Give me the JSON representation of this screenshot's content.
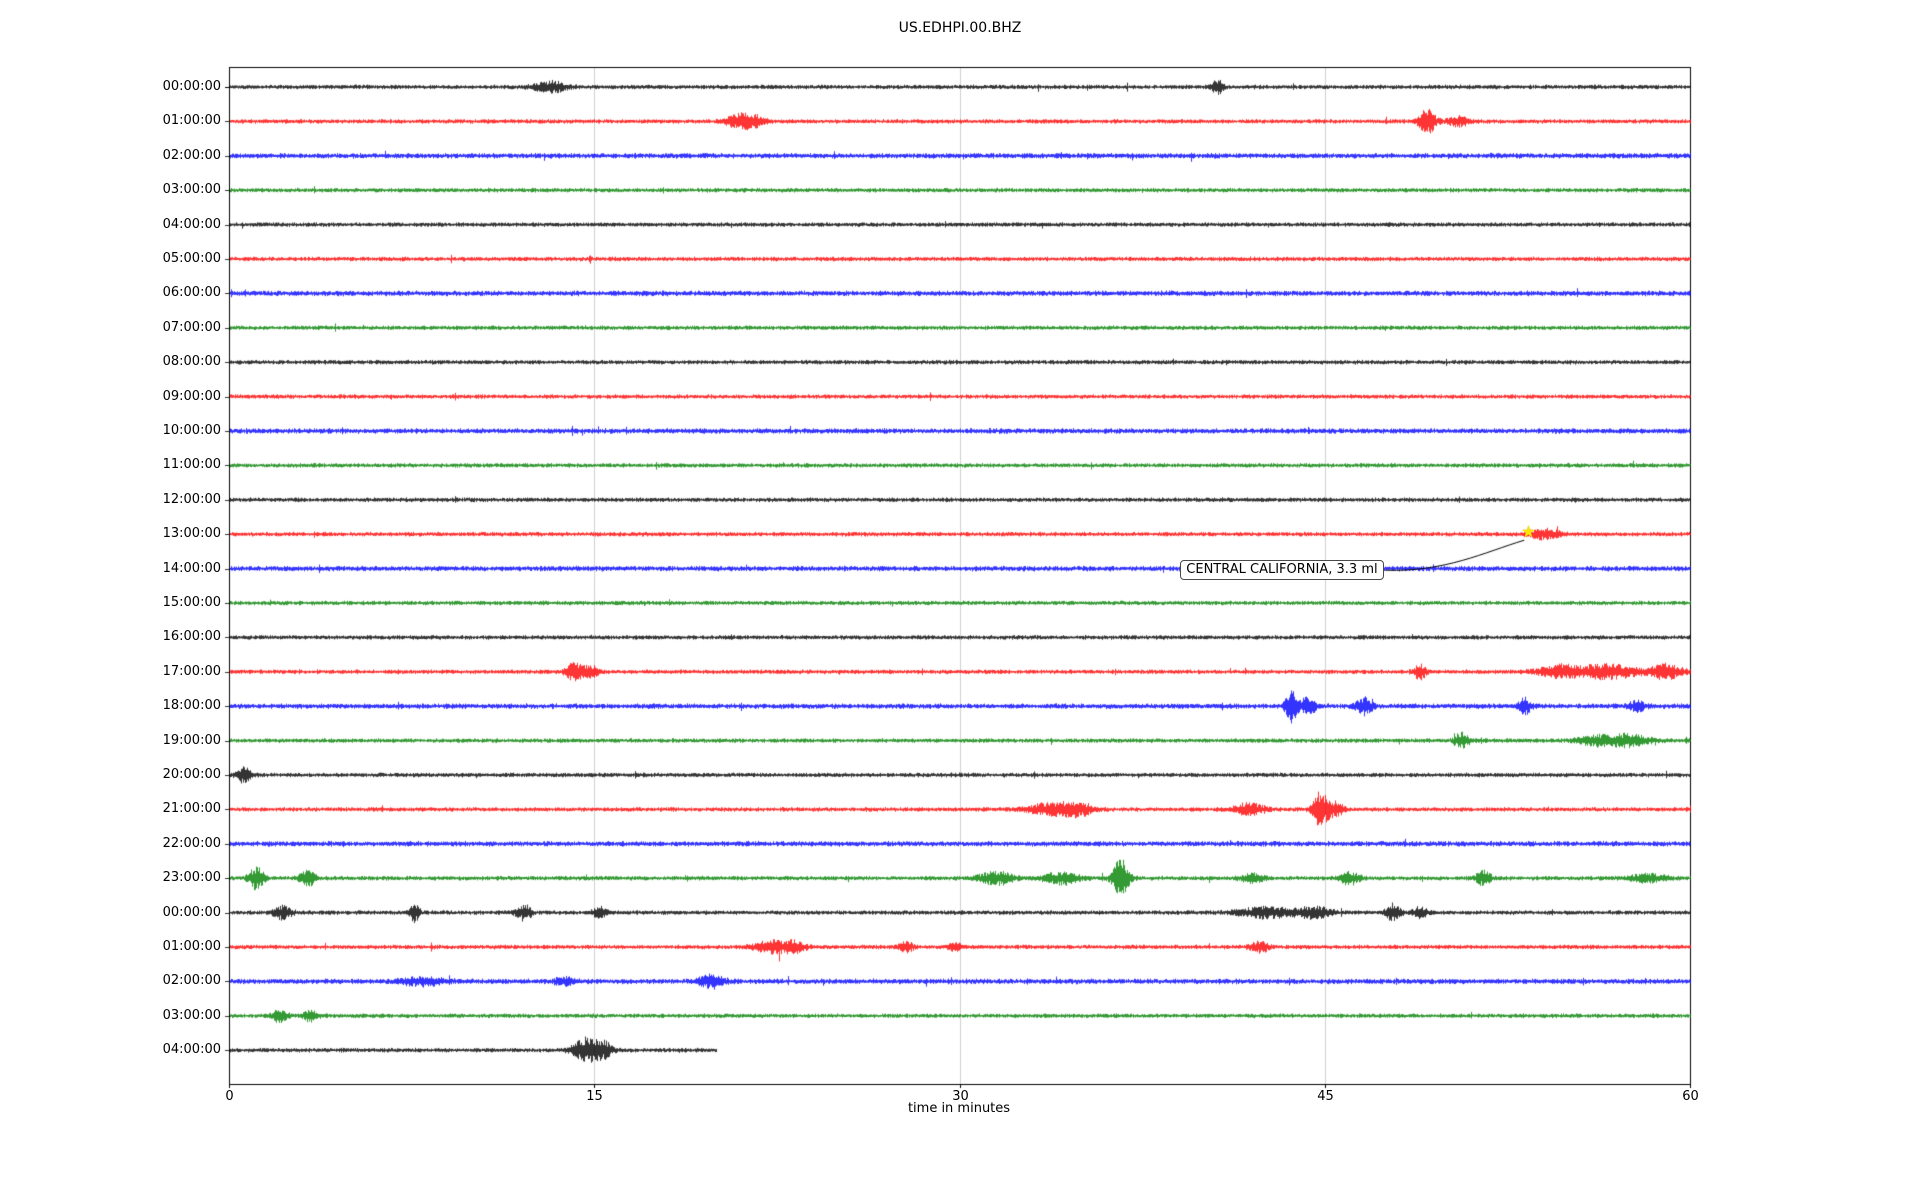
{
  "chart_data": {
    "type": "line",
    "subtype": "seismogram-dayplot",
    "title": "US.EDHPI.00.BHZ",
    "xlabel": "time in minutes",
    "x_range": [
      0,
      60
    ],
    "x_ticks": [
      0,
      15,
      30,
      45,
      60
    ],
    "grid_minutes": [
      15,
      30,
      45
    ],
    "grid_color": "#cfcfcf",
    "trace_colors_cycle": [
      "#000000",
      "#ff0000",
      "#0000ff",
      "#008000"
    ],
    "rows": [
      {
        "label": "00:00:00",
        "color": "#000000",
        "end_minute": 60,
        "events": [
          {
            "minute": 13.2,
            "width": 0.7,
            "amp": 5
          },
          {
            "minute": 40.6,
            "width": 0.25,
            "amp": 7
          }
        ]
      },
      {
        "label": "01:00:00",
        "color": "#ff0000",
        "end_minute": 60,
        "events": [
          {
            "minute": 20.9,
            "width": 0.5,
            "amp": 7
          },
          {
            "minute": 21.6,
            "width": 0.4,
            "amp": 5
          },
          {
            "minute": 49.2,
            "width": 0.35,
            "amp": 13
          },
          {
            "minute": 50.5,
            "width": 0.4,
            "amp": 5
          }
        ]
      },
      {
        "label": "02:00:00",
        "color": "#0000ff",
        "end_minute": 60,
        "base": 2.4,
        "events": []
      },
      {
        "label": "03:00:00",
        "color": "#008000",
        "end_minute": 60,
        "events": []
      },
      {
        "label": "04:00:00",
        "color": "#000000",
        "end_minute": 60,
        "events": []
      },
      {
        "label": "05:00:00",
        "color": "#ff0000",
        "end_minute": 60,
        "events": []
      },
      {
        "label": "06:00:00",
        "color": "#0000ff",
        "end_minute": 60,
        "base": 2.4,
        "events": []
      },
      {
        "label": "07:00:00",
        "color": "#008000",
        "end_minute": 60,
        "events": []
      },
      {
        "label": "08:00:00",
        "color": "#000000",
        "end_minute": 60,
        "events": []
      },
      {
        "label": "09:00:00",
        "color": "#ff0000",
        "end_minute": 60,
        "events": []
      },
      {
        "label": "10:00:00",
        "color": "#0000ff",
        "end_minute": 60,
        "base": 2.4,
        "events": []
      },
      {
        "label": "11:00:00",
        "color": "#008000",
        "end_minute": 60,
        "events": []
      },
      {
        "label": "12:00:00",
        "color": "#000000",
        "end_minute": 60,
        "events": []
      },
      {
        "label": "13:00:00",
        "color": "#ff0000",
        "end_minute": 60,
        "events": [
          {
            "minute": 53.8,
            "width": 0.5,
            "amp": 4
          },
          {
            "minute": 54.4,
            "width": 0.4,
            "amp": 3
          }
        ]
      },
      {
        "label": "14:00:00",
        "color": "#0000ff",
        "end_minute": 60,
        "base": 2.4,
        "events": []
      },
      {
        "label": "15:00:00",
        "color": "#008000",
        "end_minute": 60,
        "events": []
      },
      {
        "label": "16:00:00",
        "color": "#000000",
        "end_minute": 60,
        "events": []
      },
      {
        "label": "17:00:00",
        "color": "#ff0000",
        "end_minute": 60,
        "events": [
          {
            "minute": 14.2,
            "width": 0.4,
            "amp": 8
          },
          {
            "minute": 14.9,
            "width": 0.3,
            "amp": 5
          },
          {
            "minute": 48.9,
            "width": 0.25,
            "amp": 7
          },
          {
            "minute": 54.6,
            "width": 0.9,
            "amp": 6
          },
          {
            "minute": 56.6,
            "width": 1.2,
            "amp": 7
          },
          {
            "minute": 59.0,
            "width": 0.7,
            "amp": 7
          }
        ]
      },
      {
        "label": "18:00:00",
        "color": "#0000ff",
        "end_minute": 60,
        "base": 2.4,
        "events": [
          {
            "minute": 43.6,
            "width": 0.25,
            "amp": 15
          },
          {
            "minute": 44.3,
            "width": 0.3,
            "amp": 9
          },
          {
            "minute": 46.6,
            "width": 0.35,
            "amp": 8
          },
          {
            "minute": 53.2,
            "width": 0.25,
            "amp": 8
          },
          {
            "minute": 57.8,
            "width": 0.3,
            "amp": 5
          }
        ]
      },
      {
        "label": "19:00:00",
        "color": "#008000",
        "end_minute": 60,
        "events": [
          {
            "minute": 50.6,
            "width": 0.3,
            "amp": 7
          },
          {
            "minute": 56.3,
            "width": 0.9,
            "amp": 5
          },
          {
            "minute": 57.6,
            "width": 0.7,
            "amp": 5
          }
        ]
      },
      {
        "label": "20:00:00",
        "color": "#000000",
        "end_minute": 60,
        "events": [
          {
            "minute": 0.6,
            "width": 0.3,
            "amp": 7
          }
        ]
      },
      {
        "label": "21:00:00",
        "color": "#ff0000",
        "end_minute": 60,
        "events": [
          {
            "minute": 33.8,
            "width": 1.0,
            "amp": 6
          },
          {
            "minute": 34.9,
            "width": 0.6,
            "amp": 5
          },
          {
            "minute": 41.9,
            "width": 0.6,
            "amp": 6
          },
          {
            "minute": 44.8,
            "width": 0.3,
            "amp": 17
          },
          {
            "minute": 45.4,
            "width": 0.35,
            "amp": 7
          }
        ]
      },
      {
        "label": "22:00:00",
        "color": "#0000ff",
        "end_minute": 60,
        "base": 2.4,
        "events": []
      },
      {
        "label": "23:00:00",
        "color": "#008000",
        "end_minute": 60,
        "events": [
          {
            "minute": 1.1,
            "width": 0.3,
            "amp": 11
          },
          {
            "minute": 3.2,
            "width": 0.3,
            "amp": 9
          },
          {
            "minute": 31.5,
            "width": 0.7,
            "amp": 6
          },
          {
            "minute": 34.2,
            "width": 0.7,
            "amp": 6
          },
          {
            "minute": 36.6,
            "width": 0.35,
            "amp": 19
          },
          {
            "minute": 42.0,
            "width": 0.5,
            "amp": 4
          },
          {
            "minute": 46.0,
            "width": 0.4,
            "amp": 6
          },
          {
            "minute": 51.5,
            "width": 0.3,
            "amp": 7
          },
          {
            "minute": 58.3,
            "width": 0.7,
            "amp": 4
          }
        ]
      },
      {
        "label": "00:00:00",
        "color": "#000000",
        "end_minute": 60,
        "events": [
          {
            "minute": 2.2,
            "width": 0.4,
            "amp": 6
          },
          {
            "minute": 7.6,
            "width": 0.2,
            "amp": 9
          },
          {
            "minute": 12.1,
            "width": 0.3,
            "amp": 7
          },
          {
            "minute": 15.2,
            "width": 0.3,
            "amp": 5
          },
          {
            "minute": 42.6,
            "width": 1.2,
            "amp": 5
          },
          {
            "minute": 44.6,
            "width": 0.7,
            "amp": 5
          },
          {
            "minute": 47.8,
            "width": 0.3,
            "amp": 8
          },
          {
            "minute": 48.9,
            "width": 0.3,
            "amp": 5
          }
        ]
      },
      {
        "label": "01:00:00",
        "color": "#ff0000",
        "end_minute": 60,
        "events": [
          {
            "minute": 22.2,
            "width": 0.7,
            "amp": 6
          },
          {
            "minute": 23.2,
            "width": 0.5,
            "amp": 5
          },
          {
            "minute": 27.8,
            "width": 0.3,
            "amp": 5
          },
          {
            "minute": 29.8,
            "width": 0.3,
            "amp": 4
          },
          {
            "minute": 42.3,
            "width": 0.4,
            "amp": 5
          }
        ]
      },
      {
        "label": "02:00:00",
        "color": "#0000ff",
        "end_minute": 60,
        "base": 2.4,
        "events": [
          {
            "minute": 7.9,
            "width": 0.9,
            "amp": 4
          },
          {
            "minute": 13.8,
            "width": 0.4,
            "amp": 4
          },
          {
            "minute": 19.8,
            "width": 0.5,
            "amp": 6
          }
        ]
      },
      {
        "label": "03:00:00",
        "color": "#008000",
        "end_minute": 60,
        "events": [
          {
            "minute": 2.1,
            "width": 0.3,
            "amp": 7
          },
          {
            "minute": 3.3,
            "width": 0.3,
            "amp": 5
          }
        ]
      },
      {
        "label": "04:00:00",
        "color": "#000000",
        "end_minute": 20,
        "events": [
          {
            "minute": 14.6,
            "width": 0.5,
            "amp": 11
          },
          {
            "minute": 15.3,
            "width": 0.4,
            "amp": 9
          }
        ]
      }
    ],
    "marker": {
      "row_index": 13,
      "minute": 53.4,
      "symbol": "star",
      "glyph": "★",
      "color": "#ffe400"
    },
    "annotation": {
      "text": "CENTRAL CALIFORNIA, 3.3 ml",
      "attached_row_index": 13,
      "attached_minute": 53.4
    }
  }
}
